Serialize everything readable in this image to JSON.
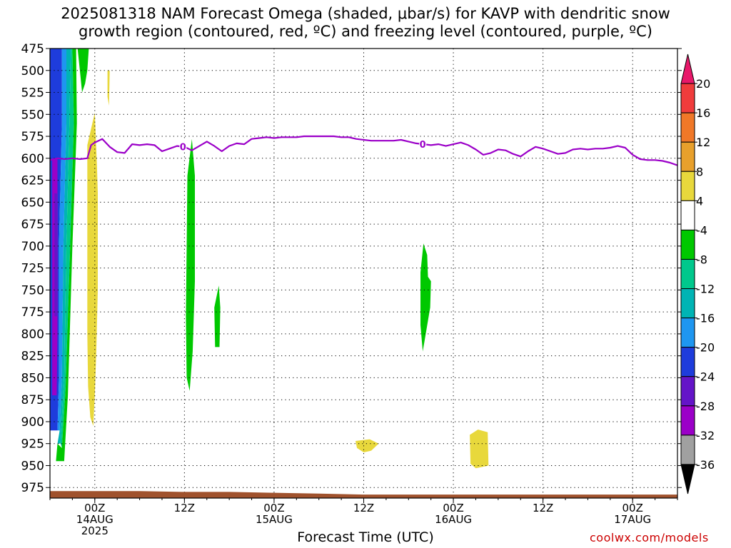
{
  "header": {
    "title_line1": "2025081318 NAM Forecast Omega (shaded, μbar/s) for KAVP with dendritic snow",
    "title_line2": "growth region (contoured, red, ºC) and freezing level (contoured, purple, ºC)"
  },
  "footer": {
    "xlabel": "Forecast Time (UTC)",
    "credit": "coolwx.com/models"
  },
  "chart_data": {
    "type": "heatmap",
    "y_axis": {
      "label": "",
      "ticks": [
        475,
        500,
        525,
        550,
        575,
        600,
        625,
        650,
        675,
        700,
        725,
        750,
        775,
        800,
        825,
        850,
        875,
        900,
        925,
        950,
        975
      ],
      "range": [
        475,
        987
      ],
      "inverted": true
    },
    "x_axis": {
      "ticks": [
        {
          "hour": 6,
          "lines": [
            "00Z",
            "14AUG",
            "2025"
          ]
        },
        {
          "hour": 18,
          "lines": [
            "12Z"
          ]
        },
        {
          "hour": 30,
          "lines": [
            "00Z",
            "15AUG"
          ]
        },
        {
          "hour": 42,
          "lines": [
            "12Z"
          ]
        },
        {
          "hour": 54,
          "lines": [
            "00Z",
            "16AUG"
          ]
        },
        {
          "hour": 66,
          "lines": [
            "12Z"
          ]
        },
        {
          "hour": 78,
          "lines": [
            "00Z",
            "17AUG"
          ]
        }
      ],
      "range": [
        0,
        84
      ]
    },
    "grid": true,
    "colorbar": {
      "labels": [
        "20",
        "16",
        "12",
        "8",
        "4",
        "-4",
        "-8",
        "-12",
        "-16",
        "-20",
        "-24",
        "-28",
        "-32",
        "-36"
      ],
      "colors": [
        "#e8186a",
        "#f03c3c",
        "#f07828",
        "#e8a02c",
        "#e8d83c",
        "#ffffff",
        "#00c800",
        "#00c88c",
        "#00b4b4",
        "#1e96f0",
        "#1e3cdc",
        "#6414c8",
        "#9b00c8",
        "#a0a0a0",
        "#000000"
      ]
    },
    "freezing_level": {
      "label": "0",
      "color": "#9b00c8",
      "points": [
        [
          0,
          602
        ],
        [
          1,
          600
        ],
        [
          2,
          601
        ],
        [
          3,
          600
        ],
        [
          4,
          601
        ],
        [
          5,
          600
        ],
        [
          5.5,
          585
        ],
        [
          6,
          582
        ],
        [
          7,
          578
        ],
        [
          8,
          587
        ],
        [
          9,
          593
        ],
        [
          10,
          594
        ],
        [
          11,
          584
        ],
        [
          12,
          585
        ],
        [
          13,
          584
        ],
        [
          14,
          585
        ],
        [
          15,
          592
        ],
        [
          16,
          589
        ],
        [
          17,
          586
        ],
        [
          18,
          587
        ],
        [
          19,
          591
        ],
        [
          20,
          586
        ],
        [
          21,
          581
        ],
        [
          22,
          586
        ],
        [
          23,
          592
        ],
        [
          24,
          586
        ],
        [
          25,
          583
        ],
        [
          26,
          584
        ],
        [
          27,
          578
        ],
        [
          28,
          577
        ],
        [
          29,
          576
        ],
        [
          30,
          577
        ],
        [
          31,
          576
        ],
        [
          32,
          576
        ],
        [
          33,
          576
        ],
        [
          34,
          575
        ],
        [
          35,
          575
        ],
        [
          36,
          575
        ],
        [
          37,
          575
        ],
        [
          38,
          575
        ],
        [
          39,
          576
        ],
        [
          40,
          576
        ],
        [
          41,
          578
        ],
        [
          42,
          579
        ],
        [
          43,
          580
        ],
        [
          44,
          580
        ],
        [
          45,
          580
        ],
        [
          46,
          580
        ],
        [
          47,
          579
        ],
        [
          48,
          581
        ],
        [
          49,
          583
        ],
        [
          50,
          584
        ],
        [
          51,
          585
        ],
        [
          52,
          584
        ],
        [
          53,
          586
        ],
        [
          54,
          584
        ],
        [
          55,
          582
        ],
        [
          56,
          585
        ],
        [
          57,
          590
        ],
        [
          58,
          596
        ],
        [
          59,
          594
        ],
        [
          60,
          590
        ],
        [
          61,
          591
        ],
        [
          62,
          595
        ],
        [
          63,
          598
        ],
        [
          64,
          592
        ],
        [
          65,
          587
        ],
        [
          66,
          589
        ],
        [
          67,
          592
        ],
        [
          68,
          595
        ],
        [
          69,
          594
        ],
        [
          70,
          590
        ],
        [
          71,
          589
        ],
        [
          72,
          590
        ],
        [
          73,
          589
        ],
        [
          74,
          589
        ],
        [
          75,
          588
        ],
        [
          76,
          586
        ],
        [
          77,
          588
        ],
        [
          78,
          596
        ],
        [
          79,
          601
        ],
        [
          80,
          602
        ],
        [
          81,
          602
        ],
        [
          82,
          603
        ],
        [
          83,
          605
        ],
        [
          84,
          608
        ]
      ]
    },
    "terrain": {
      "color": "#a0522d",
      "points": [
        [
          0,
          979
        ],
        [
          6,
          979
        ],
        [
          12,
          979
        ],
        [
          18,
          980
        ],
        [
          24,
          980
        ],
        [
          30,
          981
        ],
        [
          36,
          982
        ],
        [
          42,
          983
        ],
        [
          48,
          983
        ],
        [
          54,
          983
        ],
        [
          60,
          983
        ],
        [
          66,
          983
        ],
        [
          72,
          983
        ],
        [
          78,
          983
        ],
        [
          84,
          983
        ]
      ]
    },
    "omega_regions": [
      {
        "color": "#1e3cdc",
        "points": [
          [
            0,
            475
          ],
          [
            1.6,
            475
          ],
          [
            1.6,
            560
          ],
          [
            1.2,
            700
          ],
          [
            1.2,
            850
          ],
          [
            1.0,
            910
          ],
          [
            0,
            910
          ]
        ]
      },
      {
        "color": "#1e96f0",
        "points": [
          [
            1.6,
            475
          ],
          [
            2.2,
            475
          ],
          [
            2.2,
            560
          ],
          [
            1.8,
            700
          ],
          [
            1.6,
            850
          ],
          [
            1.3,
            910
          ],
          [
            1.0,
            910
          ],
          [
            1.2,
            850
          ],
          [
            1.2,
            700
          ],
          [
            1.6,
            560
          ]
        ]
      },
      {
        "color": "#00b4b4",
        "points": [
          [
            2.2,
            475
          ],
          [
            2.8,
            475
          ],
          [
            2.6,
            560
          ],
          [
            2.2,
            700
          ],
          [
            1.9,
            850
          ],
          [
            1.4,
            925
          ],
          [
            1.0,
            925
          ],
          [
            1.3,
            910
          ],
          [
            1.6,
            850
          ],
          [
            1.8,
            700
          ],
          [
            2.2,
            560
          ]
        ]
      },
      {
        "color": "#00c88c",
        "points": [
          [
            2.8,
            475
          ],
          [
            3.0,
            475
          ],
          [
            3.2,
            560
          ],
          [
            2.7,
            700
          ],
          [
            2.1,
            860
          ],
          [
            1.6,
            930
          ],
          [
            1.4,
            925
          ],
          [
            1.9,
            850
          ],
          [
            2.2,
            700
          ],
          [
            2.6,
            560
          ]
        ]
      },
      {
        "color": "#00c800",
        "points": [
          [
            3.0,
            475
          ],
          [
            3.5,
            475
          ],
          [
            3.6,
            560
          ],
          [
            3.0,
            700
          ],
          [
            2.4,
            870
          ],
          [
            1.9,
            945
          ],
          [
            0.8,
            945
          ],
          [
            1.0,
            925
          ],
          [
            1.6,
            930
          ],
          [
            2.1,
            860
          ],
          [
            2.7,
            700
          ],
          [
            3.2,
            560
          ]
        ]
      },
      {
        "color": "#00c800",
        "points": [
          [
            3.7,
            475
          ],
          [
            5.2,
            475
          ],
          [
            5.0,
            500
          ],
          [
            4.7,
            515
          ],
          [
            4.3,
            525
          ],
          [
            4.0,
            500
          ]
        ]
      },
      {
        "color": "#9b00c8",
        "points": [
          [
            0.3,
            600
          ],
          [
            1.0,
            600
          ],
          [
            1.0,
            700
          ],
          [
            1.0,
            800
          ],
          [
            0.9,
            870
          ],
          [
            0.3,
            870
          ]
        ]
      },
      {
        "color": "#6414c8",
        "points": [
          [
            0.6,
            640
          ],
          [
            0.95,
            640
          ],
          [
            0.95,
            780
          ],
          [
            0.6,
            780
          ]
        ]
      },
      {
        "color": "#e8d83c",
        "points": [
          [
            7.7,
            500
          ],
          [
            8.0,
            500
          ],
          [
            7.9,
            540
          ],
          [
            7.7,
            530
          ]
        ]
      },
      {
        "color": "#e8d83c",
        "points": [
          [
            5.0,
            585
          ],
          [
            6.0,
            548
          ],
          [
            6.3,
            610
          ],
          [
            6.4,
            640
          ],
          [
            6.4,
            750
          ],
          [
            6.2,
            820
          ],
          [
            6.0,
            870
          ],
          [
            5.8,
            905
          ],
          [
            5.4,
            895
          ],
          [
            5.1,
            860
          ],
          [
            5.0,
            800
          ],
          [
            5.0,
            700
          ]
        ]
      },
      {
        "color": "#00c800",
        "points": [
          [
            18.4,
            620
          ],
          [
            19.0,
            578
          ],
          [
            19.4,
            620
          ],
          [
            19.4,
            740
          ],
          [
            19.1,
            820
          ],
          [
            18.7,
            865
          ],
          [
            18.3,
            850
          ],
          [
            18.2,
            780
          ],
          [
            18.3,
            700
          ]
        ]
      },
      {
        "color": "#00c800",
        "points": [
          [
            22.0,
            770
          ],
          [
            22.6,
            745
          ],
          [
            22.8,
            770
          ],
          [
            22.7,
            815
          ],
          [
            22.1,
            815
          ]
        ]
      },
      {
        "color": "#00c800",
        "points": [
          [
            49.6,
            730
          ],
          [
            50.0,
            697
          ],
          [
            50.5,
            710
          ],
          [
            50.6,
            735
          ],
          [
            51.0,
            740
          ],
          [
            50.9,
            770
          ],
          [
            50.3,
            800
          ],
          [
            49.9,
            820
          ],
          [
            49.6,
            790
          ]
        ]
      },
      {
        "color": "#e8d83c",
        "points": [
          [
            40.9,
            922
          ],
          [
            42.8,
            920
          ],
          [
            44.0,
            925
          ],
          [
            43.0,
            933
          ],
          [
            42.0,
            935
          ],
          [
            41.1,
            930
          ]
        ]
      },
      {
        "color": "#e8d83c",
        "points": [
          [
            56.2,
            915
          ],
          [
            57.3,
            909
          ],
          [
            58.6,
            912
          ],
          [
            58.7,
            950
          ],
          [
            57.0,
            953
          ],
          [
            56.3,
            948
          ]
        ]
      }
    ]
  }
}
